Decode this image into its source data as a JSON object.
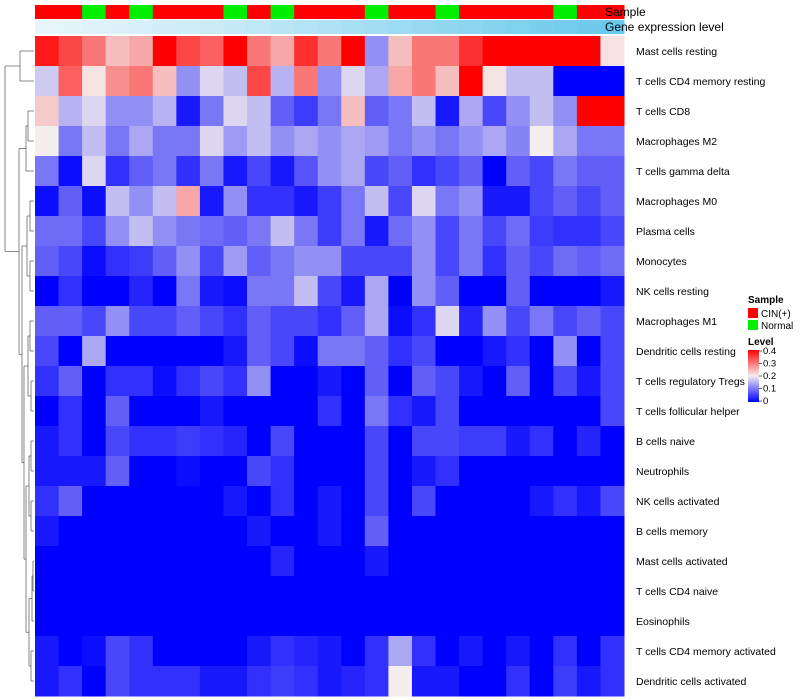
{
  "chart_data": {
    "type": "heatmap",
    "title": "",
    "annotation_titles": {
      "sample": "Sample",
      "gene_expression": "Gene expression level"
    },
    "rows": [
      "Mast cells resting",
      "T cells CD4 memory resting",
      "T cells CD8",
      "Macrophages M2",
      "T cells gamma delta",
      "Macrophages M0",
      "Plasma cells",
      "Monocytes",
      "NK cells resting",
      "Macrophages M1",
      "Dendritic cells resting",
      "T cells regulatory  Tregs",
      "T cells follicular helper",
      "B cells naive",
      "Neutrophils",
      "NK cells activated",
      "B cells memory",
      "Mast cells activated",
      "T cells CD4 naive",
      "Eosinophils",
      "T cells CD4 memory activated",
      "Dendritic cells activated"
    ],
    "sample_groups": [
      "CIN(+)",
      "CIN(+)",
      "Normal",
      "CIN(+)",
      "Normal",
      "CIN(+)",
      "CIN(+)",
      "CIN(+)",
      "Normal",
      "CIN(+)",
      "Normal",
      "CIN(+)",
      "CIN(+)",
      "CIN(+)",
      "Normal",
      "CIN(+)",
      "CIN(+)",
      "Normal",
      "CIN(+)",
      "CIN(+)",
      "CIN(+)",
      "CIN(+)",
      "Normal",
      "CIN(+)",
      "CIN(+)"
    ],
    "gene_expression_level": [
      0.02,
      0.05,
      0.08,
      0.1,
      0.13,
      0.16,
      0.19,
      0.22,
      0.26,
      0.3,
      0.34,
      0.38,
      0.42,
      0.46,
      0.5,
      0.54,
      0.58,
      0.62,
      0.66,
      0.7,
      0.74,
      0.78,
      0.82,
      0.86,
      0.9
    ],
    "values": [
      [
        0.38,
        0.34,
        0.3,
        0.24,
        0.26,
        0.4,
        0.34,
        0.32,
        0.4,
        0.3,
        0.26,
        0.36,
        0.3,
        0.4,
        0.12,
        0.24,
        0.3,
        0.3,
        0.36,
        0.4,
        0.4,
        0.4,
        0.4,
        0.4,
        0.21
      ],
      [
        0.17,
        0.32,
        0.21,
        0.28,
        0.3,
        0.24,
        0.12,
        0.18,
        0.16,
        0.34,
        0.15,
        0.3,
        0.12,
        0.18,
        0.14,
        0.26,
        0.3,
        0.24,
        0.4,
        0.21,
        0.16,
        0.16,
        0.0,
        0.0,
        0.0
      ],
      [
        0.23,
        0.15,
        0.18,
        0.12,
        0.12,
        0.15,
        0.02,
        0.1,
        0.18,
        0.16,
        0.08,
        0.05,
        0.1,
        0.24,
        0.08,
        0.1,
        0.16,
        0.02,
        0.14,
        0.06,
        0.12,
        0.16,
        0.12,
        0.4,
        0.4
      ],
      [
        0.2,
        0.1,
        0.16,
        0.1,
        0.14,
        0.1,
        0.1,
        0.18,
        0.13,
        0.16,
        0.12,
        0.14,
        0.12,
        0.14,
        0.13,
        0.1,
        0.12,
        0.1,
        0.12,
        0.14,
        0.11,
        0.2,
        0.14,
        0.1,
        0.1
      ],
      [
        0.1,
        0.01,
        0.18,
        0.04,
        0.08,
        0.1,
        0.04,
        0.1,
        0.02,
        0.06,
        0.02,
        0.07,
        0.12,
        0.14,
        0.06,
        0.08,
        0.04,
        0.06,
        0.08,
        0.0,
        0.08,
        0.06,
        0.1,
        0.08,
        0.08
      ],
      [
        0.01,
        0.08,
        0.01,
        0.16,
        0.12,
        0.16,
        0.26,
        0.02,
        0.12,
        0.04,
        0.04,
        0.02,
        0.05,
        0.1,
        0.16,
        0.06,
        0.18,
        0.1,
        0.12,
        0.02,
        0.02,
        0.06,
        0.08,
        0.06,
        0.08
      ],
      [
        0.09,
        0.09,
        0.06,
        0.12,
        0.16,
        0.12,
        0.1,
        0.09,
        0.08,
        0.1,
        0.16,
        0.1,
        0.05,
        0.1,
        0.02,
        0.09,
        0.12,
        0.06,
        0.1,
        0.06,
        0.09,
        0.05,
        0.04,
        0.04,
        0.06
      ],
      [
        0.08,
        0.06,
        0.01,
        0.04,
        0.05,
        0.08,
        0.12,
        0.06,
        0.13,
        0.08,
        0.1,
        0.12,
        0.12,
        0.06,
        0.06,
        0.06,
        0.12,
        0.06,
        0.1,
        0.04,
        0.08,
        0.06,
        0.09,
        0.08,
        0.09
      ],
      [
        0.0,
        0.04,
        0.0,
        0.0,
        0.03,
        0.0,
        0.1,
        0.02,
        0.01,
        0.1,
        0.1,
        0.16,
        0.06,
        0.02,
        0.14,
        0.0,
        0.12,
        0.08,
        0.0,
        0.0,
        0.08,
        0.0,
        0.0,
        0.0,
        0.02
      ],
      [
        0.08,
        0.08,
        0.06,
        0.12,
        0.06,
        0.06,
        0.08,
        0.06,
        0.04,
        0.08,
        0.06,
        0.06,
        0.04,
        0.08,
        0.14,
        0.01,
        0.04,
        0.18,
        0.03,
        0.12,
        0.06,
        0.1,
        0.06,
        0.08,
        0.06
      ],
      [
        0.06,
        0.0,
        0.14,
        0.0,
        0.0,
        0.0,
        0.0,
        0.0,
        0.02,
        0.08,
        0.06,
        0.01,
        0.1,
        0.1,
        0.08,
        0.04,
        0.06,
        0.0,
        0.0,
        0.02,
        0.04,
        0.0,
        0.12,
        0.0,
        0.06
      ],
      [
        0.04,
        0.08,
        0.0,
        0.04,
        0.04,
        0.01,
        0.04,
        0.06,
        0.04,
        0.12,
        0.0,
        0.0,
        0.02,
        0.0,
        0.08,
        0.0,
        0.08,
        0.06,
        0.02,
        0.0,
        0.08,
        0.0,
        0.06,
        0.02,
        0.06
      ],
      [
        0.0,
        0.04,
        0.0,
        0.08,
        0.0,
        0.0,
        0.0,
        0.02,
        0.0,
        0.0,
        0.0,
        0.0,
        0.04,
        0.0,
        0.1,
        0.04,
        0.02,
        0.06,
        0.0,
        0.0,
        0.0,
        0.0,
        0.0,
        0.0,
        0.06
      ],
      [
        0.02,
        0.04,
        0.0,
        0.06,
        0.04,
        0.04,
        0.05,
        0.04,
        0.03,
        0.0,
        0.06,
        0.0,
        0.0,
        0.0,
        0.06,
        0.0,
        0.06,
        0.06,
        0.05,
        0.05,
        0.02,
        0.04,
        0.0,
        0.03,
        0.0
      ],
      [
        0.02,
        0.02,
        0.02,
        0.08,
        0.0,
        0.0,
        0.01,
        0.0,
        0.0,
        0.06,
        0.04,
        0.0,
        0.0,
        0.0,
        0.06,
        0.0,
        0.02,
        0.04,
        0.0,
        0.0,
        0.0,
        0.0,
        0.0,
        0.0,
        0.0
      ],
      [
        0.04,
        0.08,
        0.0,
        0.0,
        0.0,
        0.0,
        0.0,
        0.0,
        0.02,
        0.0,
        0.04,
        0.0,
        0.02,
        0.0,
        0.06,
        0.0,
        0.06,
        0.0,
        0.0,
        0.0,
        0.0,
        0.02,
        0.04,
        0.02,
        0.06
      ],
      [
        0.02,
        0.0,
        0.0,
        0.0,
        0.0,
        0.0,
        0.0,
        0.0,
        0.0,
        0.02,
        0.0,
        0.0,
        0.02,
        0.0,
        0.08,
        0.0,
        0.0,
        0.0,
        0.0,
        0.0,
        0.0,
        0.0,
        0.0,
        0.0,
        0.0
      ],
      [
        0.0,
        0.0,
        0.0,
        0.0,
        0.0,
        0.0,
        0.0,
        0.0,
        0.0,
        0.0,
        0.03,
        0.0,
        0.0,
        0.0,
        0.02,
        0.0,
        0.0,
        0.0,
        0.0,
        0.0,
        0.0,
        0.0,
        0.0,
        0.0,
        0.0
      ],
      [
        0.0,
        0.0,
        0.0,
        0.0,
        0.0,
        0.0,
        0.0,
        0.0,
        0.0,
        0.0,
        0.0,
        0.0,
        0.0,
        0.0,
        0.0,
        0.0,
        0.0,
        0.0,
        0.0,
        0.0,
        0.0,
        0.0,
        0.0,
        0.0,
        0.0
      ],
      [
        0.0,
        0.0,
        0.0,
        0.0,
        0.0,
        0.0,
        0.0,
        0.0,
        0.0,
        0.0,
        0.0,
        0.0,
        0.0,
        0.0,
        0.0,
        0.0,
        0.0,
        0.0,
        0.0,
        0.0,
        0.0,
        0.0,
        0.0,
        0.0,
        0.0
      ],
      [
        0.02,
        0.0,
        0.01,
        0.06,
        0.04,
        0.0,
        0.0,
        0.0,
        0.0,
        0.02,
        0.04,
        0.03,
        0.02,
        0.0,
        0.04,
        0.14,
        0.04,
        0.0,
        0.02,
        0.0,
        0.02,
        0.0,
        0.04,
        0.0,
        0.04
      ],
      [
        0.02,
        0.04,
        0.0,
        0.06,
        0.04,
        0.04,
        0.04,
        0.02,
        0.02,
        0.04,
        0.05,
        0.04,
        0.02,
        0.03,
        0.04,
        0.2,
        0.02,
        0.02,
        0.0,
        0.0,
        0.04,
        0.0,
        0.05,
        0.02,
        0.04
      ]
    ],
    "color_scale": {
      "min": 0,
      "mid": 0.2,
      "max": 0.4,
      "low": "#0000ff",
      "midcolor": "#f4eeee",
      "high": "#ff0000"
    },
    "legend": {
      "sample_title": "Sample",
      "sample_entries": [
        {
          "label": "CIN(+)",
          "color": "#ff0000"
        },
        {
          "label": "Normal",
          "color": "#00ee00"
        }
      ],
      "level_title": "Level",
      "level_ticks": [
        "0.4",
        "0.3",
        "0.2",
        "0.1",
        "0"
      ]
    },
    "gene_expression_colors": {
      "low": "#eaf6fb",
      "high": "#5bc4ea"
    },
    "row_dendrogram": true
  }
}
